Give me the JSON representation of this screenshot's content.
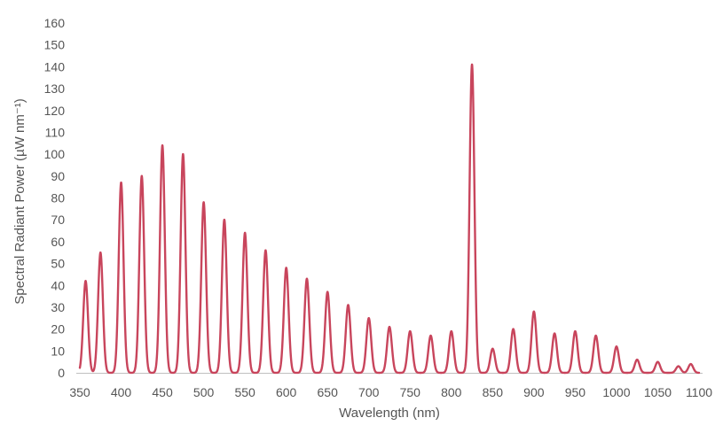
{
  "chart_data": {
    "type": "line",
    "title": "",
    "xlabel": "Wavelength (nm)",
    "ylabel": "Spectral Radiant Power (µW nm⁻¹)",
    "xlim": [
      350,
      1100
    ],
    "ylim": [
      0,
      160
    ],
    "x_ticks": [
      350,
      400,
      450,
      500,
      550,
      600,
      650,
      700,
      750,
      800,
      850,
      900,
      950,
      1000,
      1050,
      1100
    ],
    "y_ticks": [
      0,
      10,
      20,
      30,
      40,
      50,
      60,
      70,
      80,
      90,
      100,
      110,
      120,
      130,
      140,
      150,
      160
    ],
    "grid": false,
    "legend": "none",
    "color": "#c8455c",
    "peak_shape": "narrow gaussian peaks returning to baseline",
    "peaks": [
      {
        "x": 357,
        "y": 42
      },
      {
        "x": 375,
        "y": 55
      },
      {
        "x": 400,
        "y": 87
      },
      {
        "x": 425,
        "y": 90
      },
      {
        "x": 450,
        "y": 104
      },
      {
        "x": 475,
        "y": 100
      },
      {
        "x": 500,
        "y": 78
      },
      {
        "x": 525,
        "y": 70
      },
      {
        "x": 550,
        "y": 64
      },
      {
        "x": 575,
        "y": 56
      },
      {
        "x": 600,
        "y": 48
      },
      {
        "x": 625,
        "y": 43
      },
      {
        "x": 650,
        "y": 37
      },
      {
        "x": 675,
        "y": 31
      },
      {
        "x": 700,
        "y": 25
      },
      {
        "x": 725,
        "y": 21
      },
      {
        "x": 750,
        "y": 19
      },
      {
        "x": 775,
        "y": 17
      },
      {
        "x": 800,
        "y": 19
      },
      {
        "x": 825,
        "y": 141
      },
      {
        "x": 850,
        "y": 11
      },
      {
        "x": 875,
        "y": 20
      },
      {
        "x": 900,
        "y": 28
      },
      {
        "x": 925,
        "y": 18
      },
      {
        "x": 950,
        "y": 19
      },
      {
        "x": 975,
        "y": 17
      },
      {
        "x": 1000,
        "y": 12
      },
      {
        "x": 1025,
        "y": 6
      },
      {
        "x": 1050,
        "y": 5
      },
      {
        "x": 1075,
        "y": 3
      },
      {
        "x": 1090,
        "y": 4
      }
    ]
  }
}
